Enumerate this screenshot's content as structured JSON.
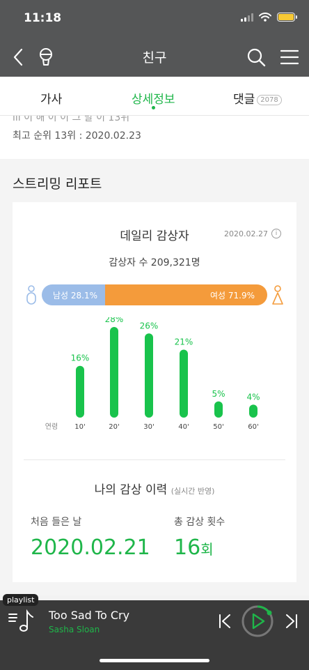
{
  "status": {
    "time": "11:18"
  },
  "nav": {
    "title": "친구",
    "back_icon": "chevron-left-icon",
    "mic_icon": "microphone-icon",
    "search_icon": "search-icon",
    "menu_icon": "hamburger-menu-icon"
  },
  "tabs": [
    {
      "label": "가사",
      "active": false
    },
    {
      "label": "상세정보",
      "active": true
    },
    {
      "label": "댓글",
      "badge": "2078",
      "active": false
    }
  ],
  "rank": {
    "partial_text": "ııı 이 해 이 이 그 말 이 13위",
    "text": "최고 순위 13위 : 2020.02.23"
  },
  "report": {
    "title": "스트리밍 리포트",
    "daily": {
      "title": "데일리 감상자",
      "date": "2020.02.27",
      "listeners": "감상자 수 209,321명",
      "male_label": "남성 28.1%",
      "female_label": "여성 71.9%",
      "male_pct": 28.1,
      "female_pct": 71.9,
      "colors": {
        "male": "#9bbce8",
        "female": "#f49b3b",
        "bar": "#19c34c"
      }
    },
    "history": {
      "title": "나의 감상 이력",
      "subtitle": "(실시간 반영)",
      "first_label": "처음 들은 날",
      "first_value": "2020.02.21",
      "count_label": "총 감상 횟수",
      "count_value": "16",
      "count_unit": "회"
    }
  },
  "chart_data": {
    "type": "bar",
    "xlabel": "연령",
    "categories": [
      "10'",
      "20'",
      "30'",
      "40'",
      "50'",
      "60'"
    ],
    "values": [
      16,
      28,
      26,
      21,
      5,
      4
    ],
    "value_labels": [
      "16%",
      "28%",
      "26%",
      "21%",
      "5%",
      "4%"
    ],
    "ylim": [
      0,
      28
    ],
    "grid": false
  },
  "player": {
    "playlist_tag": "playlist",
    "title": "Too Sad To Cry",
    "artist": "Sasha Sloan",
    "accent": "#1fb64a"
  }
}
